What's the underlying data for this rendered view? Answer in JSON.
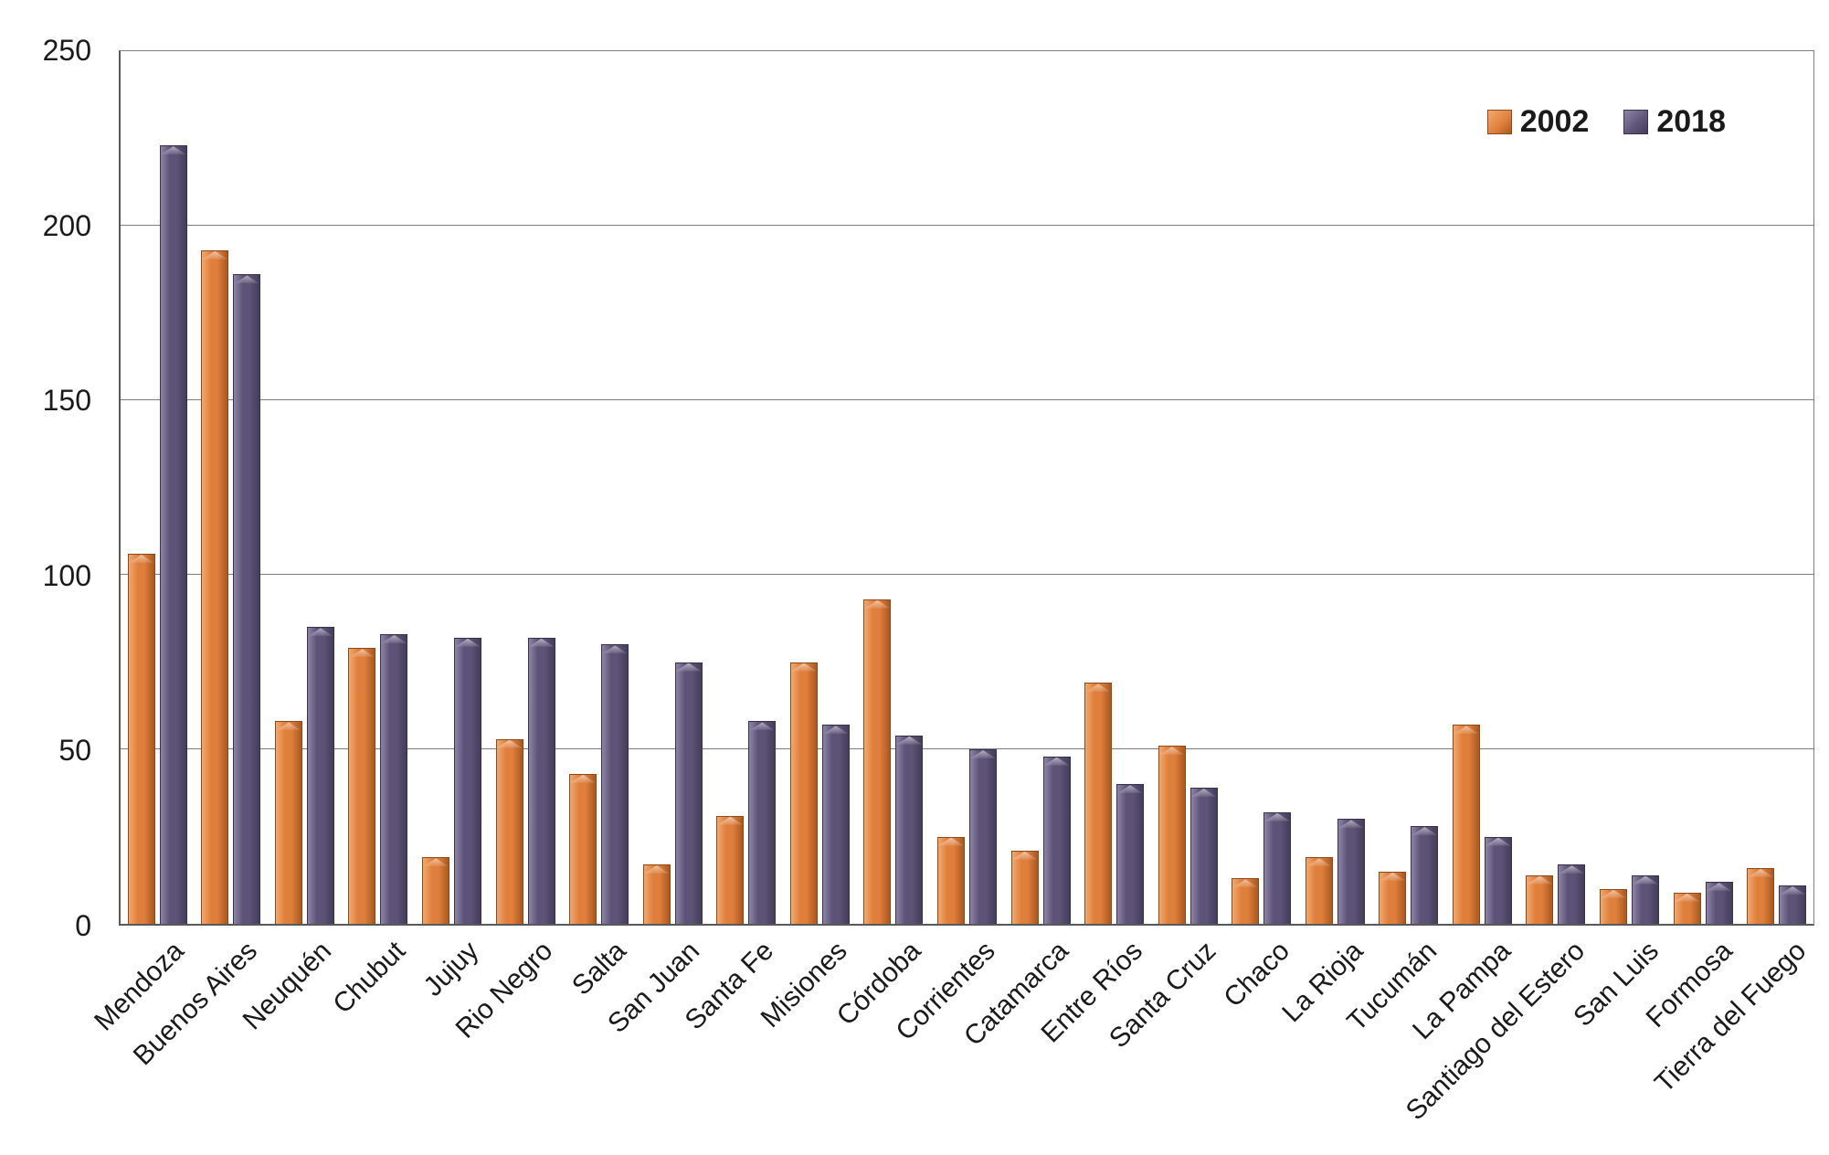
{
  "chart_data": {
    "type": "bar",
    "title": "",
    "xlabel": "",
    "ylabel": "",
    "ylim": [
      0,
      250
    ],
    "yticks": [
      0,
      50,
      100,
      150,
      200,
      250
    ],
    "grid": "horizontal",
    "legend_position": "top-right",
    "categories": [
      "Mendoza",
      "Buenos Aires",
      "Neuquén",
      "Chubut",
      "Jujuy",
      "Rio Negro",
      "Salta",
      "San Juan",
      "Santa Fe",
      "Misiones",
      "Córdoba",
      "Corrientes",
      "Catamarca",
      "Entre Ríos",
      "Santa Cruz",
      "Chaco",
      "La Rioja",
      "Tucumán",
      "La Pampa",
      "Santiago del Estero",
      "San Luis",
      "Formosa",
      "Tierra del Fuego"
    ],
    "series": [
      {
        "name": "2002",
        "color": "#DF7F3C",
        "color_light": "#F2A96E",
        "color_dark": "#A9581F",
        "border": "#8E4A1A",
        "values": [
          106,
          193,
          58,
          79,
          19,
          53,
          43,
          17,
          31,
          75,
          93,
          25,
          21,
          69,
          51,
          13,
          19,
          15,
          57,
          14,
          10,
          9,
          16
        ]
      },
      {
        "name": "2018",
        "color": "#5D5377",
        "color_light": "#8D84A8",
        "color_dark": "#443D5A",
        "border": "#38324B",
        "values": [
          223,
          186,
          85,
          83,
          82,
          82,
          80,
          75,
          58,
          57,
          54,
          50,
          48,
          40,
          39,
          32,
          30,
          28,
          25,
          17,
          14,
          12,
          11
        ]
      }
    ]
  }
}
